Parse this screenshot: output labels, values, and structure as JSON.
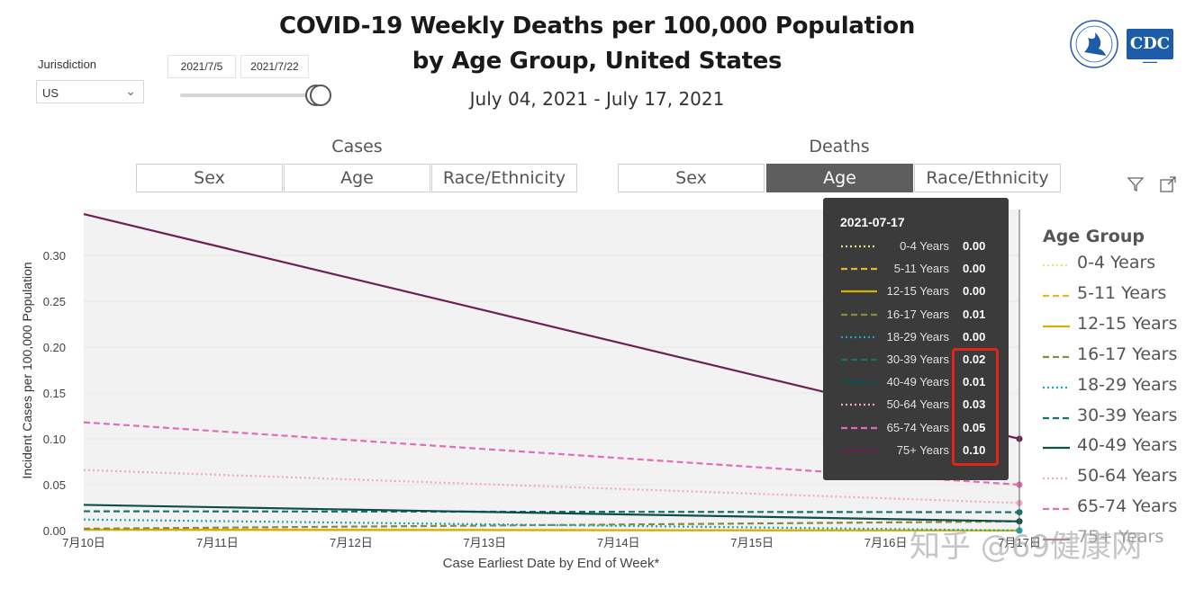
{
  "header": {
    "title_line1": "COVID-19 Weekly Deaths per 100,000 Population",
    "title_line2": "by Age Group, United States",
    "subtitle": "July 04, 2021 - July 17, 2021"
  },
  "filters": {
    "jurisdiction_label": "Jurisdiction",
    "jurisdiction_value": "US",
    "date_start": "2021/7/5",
    "date_end": "2021/7/22"
  },
  "tabs": {
    "cases_label": "Cases",
    "deaths_label": "Deaths",
    "cases": [
      "Sex",
      "Age",
      "Race/Ethnicity"
    ],
    "deaths": [
      "Sex",
      "Age",
      "Race/Ethnicity"
    ],
    "active": "deaths-Age"
  },
  "logo": {
    "cdc_text": "CDC"
  },
  "tooltip": {
    "date": "2021-07-17",
    "rows": [
      {
        "name": "0-4 Years",
        "value": "0.00"
      },
      {
        "name": "5-11 Years",
        "value": "0.00"
      },
      {
        "name": "12-15 Years",
        "value": "0.00"
      },
      {
        "name": "16-17 Years",
        "value": "0.01"
      },
      {
        "name": "18-29 Years",
        "value": "0.00"
      },
      {
        "name": "30-39 Years",
        "value": "0.02"
      },
      {
        "name": "40-49 Years",
        "value": "0.01"
      },
      {
        "name": "50-64 Years",
        "value": "0.03"
      },
      {
        "name": "65-74 Years",
        "value": "0.05"
      },
      {
        "name": "75+ Years",
        "value": "0.10"
      }
    ]
  },
  "watermark": "知乎 @69健康网",
  "chart_data": {
    "type": "line",
    "ylabel": "Incident Cases per 100,000 Population",
    "xlabel": "Case Earliest Date by End of Week*",
    "ylim": [
      0,
      0.35
    ],
    "yticks": [
      "0.00",
      "0.05",
      "0.10",
      "0.15",
      "0.20",
      "0.25",
      "0.30"
    ],
    "ytick_values": [
      0,
      0.05,
      0.1,
      0.15,
      0.2,
      0.25,
      0.3
    ],
    "x_ticks": [
      "7月10日",
      "7月11日",
      "7月12日",
      "7月13日",
      "7月14日",
      "7月15日",
      "7月16日",
      "7月17日"
    ],
    "x": [
      "2021-07-10",
      "2021-07-17"
    ],
    "legend_title": "Age Group",
    "series": [
      {
        "name": "0-4 Years",
        "values": [
          0.001,
          0.0
        ],
        "color": "#e8e07a",
        "dash": "2,3"
      },
      {
        "name": "5-11 Years",
        "values": [
          0.001,
          0.0
        ],
        "color": "#e0b830",
        "dash": "7,4"
      },
      {
        "name": "12-15 Years",
        "values": [
          0.001,
          0.0
        ],
        "color": "#d4b100",
        "dash": ""
      },
      {
        "name": "16-17 Years",
        "values": [
          0.002,
          0.01
        ],
        "color": "#8a8a3a",
        "dash": "7,4"
      },
      {
        "name": "18-29 Years",
        "values": [
          0.012,
          0.0
        ],
        "color": "#1aa8b8",
        "dash": "2,3"
      },
      {
        "name": "30-39 Years",
        "values": [
          0.021,
          0.02
        ],
        "color": "#17716c",
        "dash": "7,4"
      },
      {
        "name": "40-49 Years",
        "values": [
          0.028,
          0.01
        ],
        "color": "#0e4f48",
        "dash": ""
      },
      {
        "name": "50-64 Years",
        "values": [
          0.066,
          0.03
        ],
        "color": "#eea8c8",
        "dash": "2,3"
      },
      {
        "name": "65-74 Years",
        "values": [
          0.118,
          0.05
        ],
        "color": "#de6fb0",
        "dash": "7,4"
      },
      {
        "name": "75+ Years",
        "values": [
          0.345,
          0.1
        ],
        "color": "#6b2154",
        "dash": ""
      }
    ]
  }
}
